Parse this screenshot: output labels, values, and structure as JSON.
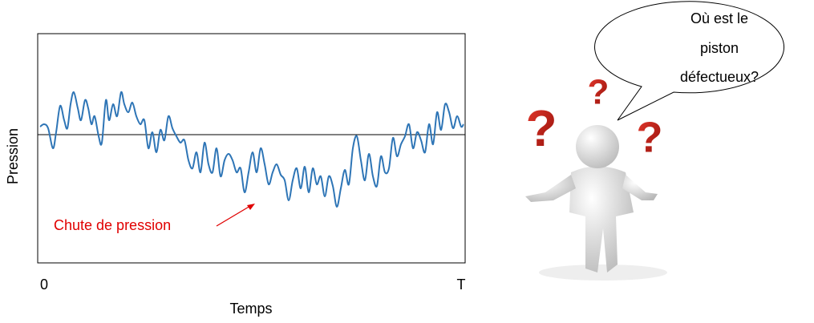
{
  "chart_data": {
    "type": "line",
    "x_label": "Temps",
    "y_label": "Pression",
    "annotation": "Chute de pression",
    "xlim": [
      0,
      533
    ],
    "xticks": [
      0,
      {
        "value": 533,
        "label": "T"
      }
    ],
    "ylim": [
      0,
      286
    ],
    "reference_value": 160,
    "color": "#2e75b6",
    "x": [
      3,
      8,
      13,
      19,
      23,
      28,
      33,
      37,
      41,
      45,
      50,
      54,
      59,
      63,
      67,
      71,
      76,
      80,
      85,
      89,
      94,
      99,
      104,
      108,
      113,
      118,
      123,
      128,
      133,
      138,
      143,
      148,
      153,
      158,
      163,
      168,
      173,
      178,
      183,
      188,
      193,
      198,
      203,
      208,
      213,
      218,
      223,
      228,
      233,
      238,
      243,
      248,
      253,
      258,
      263,
      268,
      273,
      278,
      283,
      288,
      293,
      298,
      303,
      308,
      313,
      318,
      323,
      328,
      333,
      338,
      343,
      348,
      353,
      358,
      363,
      368,
      373,
      378,
      383,
      388,
      393,
      398,
      403,
      408,
      413,
      418,
      423,
      428,
      433,
      438,
      443,
      448,
      453,
      458,
      463,
      468,
      473,
      478,
      483,
      488,
      493,
      498,
      503,
      508,
      513,
      518,
      523,
      528,
      531
    ],
    "values": [
      170,
      173,
      168,
      143,
      163,
      196,
      178,
      168,
      198,
      213,
      193,
      178,
      203,
      193,
      173,
      183,
      158,
      150,
      203,
      178,
      198,
      183,
      213,
      198,
      188,
      200,
      183,
      173,
      178,
      143,
      163,
      138,
      166,
      153,
      183,
      168,
      158,
      150,
      153,
      128,
      118,
      138,
      113,
      150,
      123,
      113,
      143,
      108,
      128,
      136,
      128,
      113,
      118,
      88,
      113,
      138,
      113,
      143,
      123,
      98,
      113,
      123,
      110,
      103,
      78,
      103,
      118,
      93,
      120,
      88,
      118,
      98,
      108,
      83,
      108,
      96,
      70,
      93,
      116,
      98,
      143,
      158,
      128,
      103,
      136,
      108,
      96,
      133,
      113,
      118,
      156,
      133,
      148,
      158,
      173,
      143,
      163,
      153,
      138,
      173,
      148,
      188,
      166,
      198,
      188,
      168,
      183,
      170,
      173
    ]
  },
  "bubble": {
    "lines": [
      "Où est le",
      "piston",
      "défectueux?"
    ]
  },
  "figure": {
    "question_marks": [
      "?",
      "?",
      "?"
    ]
  }
}
